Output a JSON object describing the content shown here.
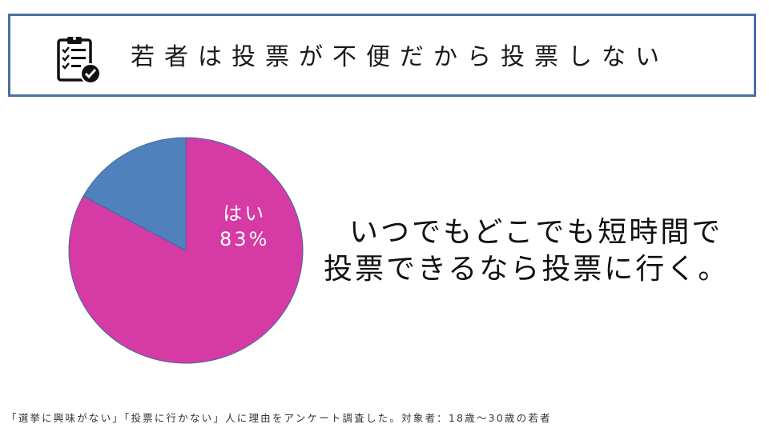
{
  "title": "若者は投票が不便だから投票しない",
  "icon": "clipboard-checklist-icon",
  "headline": {
    "line1": "いつでもどこでも短時間で",
    "line2": "投票できるなら投票に行く。"
  },
  "footnote": "「選挙に興味がない」「投票に行かない」人に理由をアンケート調査した。対象者：18歳～30歳の若者",
  "colors": {
    "frame": "#4a6fa5",
    "yes": "#d63aa4",
    "other": "#4f81bd"
  },
  "chart_data": {
    "type": "pie",
    "slices": [
      {
        "label": "はい",
        "value": 83,
        "value_label": "83%",
        "color": "#d63aa4"
      },
      {
        "label": "",
        "value": 17,
        "value_label": "",
        "color": "#4f81bd"
      }
    ],
    "start_angle_deg": 0,
    "direction": "clockwise",
    "legend": "none"
  }
}
